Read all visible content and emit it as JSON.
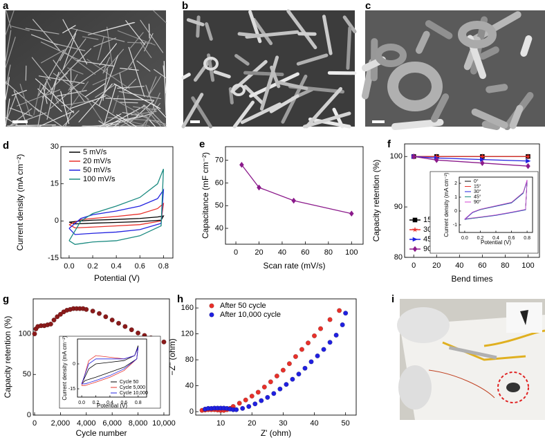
{
  "panel_labels": [
    "a",
    "b",
    "c",
    "d",
    "e",
    "f",
    "g",
    "h",
    "i"
  ],
  "chart_data": [
    {
      "type": "line",
      "xlabel": "Potential (V)",
      "ylabel": "Current density (mA cm⁻²)",
      "x": [
        0,
        0.1,
        0.2,
        0.4,
        0.6,
        0.75,
        0.8,
        0.78,
        0.6,
        0.4,
        0.2,
        0.05,
        0
      ],
      "series": [
        {
          "name": "5 mV/s",
          "color": "#000000",
          "values": [
            -0.5,
            0,
            0.3,
            0.6,
            1,
            1.6,
            2,
            0.3,
            -0.3,
            -0.6,
            -0.9,
            -1.2,
            -0.5
          ]
        },
        {
          "name": "20 mV/s",
          "color": "#e8302a",
          "values": [
            -1.5,
            0.5,
            1,
            1.8,
            2.8,
            5,
            7,
            0,
            -1.5,
            -2,
            -2.5,
            -2.8,
            -1.5
          ]
        },
        {
          "name": "50 mV/s",
          "color": "#2020e0",
          "values": [
            -3,
            1,
            2.5,
            4,
            6,
            9,
            12.5,
            -1,
            -3.5,
            -4.5,
            -5,
            -5.5,
            -3
          ]
        },
        {
          "name": "100 mV/s",
          "color": "#1a8a80",
          "values": [
            -8,
            0,
            3,
            6,
            9.5,
            15,
            21,
            -2,
            -6,
            -8,
            -8.5,
            -9.5,
            -8
          ]
        }
      ],
      "xlim": [
        -0.07,
        0.88
      ],
      "ylim": [
        -15,
        30
      ],
      "xticks": [
        {
          "value": 0,
          "label": "0.0"
        },
        0.2,
        0.4,
        0.6,
        0.8
      ],
      "yticks": [
        -15,
        0,
        15,
        30
      ],
      "legend": "upper left"
    },
    {
      "type": "line",
      "xlabel": "Scan rate (mV/s)",
      "ylabel": "Capacitance (mF cm⁻²)",
      "x": [
        5,
        20,
        50,
        100
      ],
      "values": [
        68,
        58,
        52.2,
        46.5
      ],
      "color": "#8b1a8b",
      "marker": "diamond",
      "xlim": [
        -9,
        110
      ],
      "ylim": [
        33,
        76
      ],
      "xticks": [
        0,
        20,
        40,
        60,
        80,
        100
      ],
      "yticks": [
        40,
        50,
        60,
        70
      ]
    },
    {
      "type": "line",
      "xlabel": "Bend times",
      "ylabel": "Capacity retention (%)",
      "x": [
        0,
        20,
        60,
        100
      ],
      "series": [
        {
          "name": "15°",
          "color": "#000000",
          "marker": "square",
          "values": [
            100,
            100,
            100,
            100
          ]
        },
        {
          "name": "30°",
          "color": "#e8302a",
          "marker": "star",
          "values": [
            100,
            100,
            100,
            100
          ]
        },
        {
          "name": "45°",
          "color": "#2020e0",
          "marker": "triangle",
          "values": [
            100,
            99.7,
            99.4,
            99.1
          ]
        },
        {
          "name": "90°",
          "color": "#8b1a8b",
          "marker": "diamond",
          "values": [
            100,
            99.3,
            98.7,
            98.1
          ]
        }
      ],
      "xlim": [
        -8,
        110
      ],
      "ylim": [
        80,
        102.5
      ],
      "xticks": [
        0,
        20,
        40,
        60,
        80,
        100
      ],
      "yticks": [
        80,
        90,
        100
      ],
      "legend": "center left"
    },
    {
      "type": "line",
      "xlabel": "Potential (V)",
      "ylabel": "Current density (mA cm⁻²)",
      "x": [
        0,
        0.1,
        0.2,
        0.4,
        0.6,
        0.75,
        0.8,
        0.78,
        0.6,
        0.4,
        0.2,
        0.05,
        0
      ],
      "series": [
        {
          "name": "0°",
          "color": "#000000",
          "values": [
            -0.6,
            -0.1,
            0.1,
            0.35,
            0.6,
            1.3,
            2.2,
            0.1,
            -0.1,
            -0.3,
            -0.45,
            -0.55,
            -0.6
          ]
        },
        {
          "name": "15°",
          "color": "#e8302a",
          "values": [
            -0.6,
            -0.1,
            0.12,
            0.37,
            0.62,
            1.32,
            2.2,
            0.1,
            -0.1,
            -0.3,
            -0.45,
            -0.55,
            -0.6
          ]
        },
        {
          "name": "30°",
          "color": "#2020e0",
          "values": [
            -0.62,
            -0.12,
            0.1,
            0.34,
            0.58,
            1.28,
            2.15,
            0.08,
            -0.12,
            -0.32,
            -0.47,
            -0.57,
            -0.62
          ]
        },
        {
          "name": "45°",
          "color": "#1a8a80",
          "values": [
            -0.6,
            -0.1,
            0.11,
            0.36,
            0.6,
            1.3,
            2.18,
            0.1,
            -0.1,
            -0.3,
            -0.46,
            -0.56,
            -0.6
          ]
        },
        {
          "name": "90°",
          "color": "#d040d0",
          "values": [
            -0.58,
            -0.08,
            0.13,
            0.38,
            0.63,
            1.34,
            2.25,
            0.12,
            -0.08,
            -0.28,
            -0.43,
            -0.53,
            -0.58
          ]
        }
      ],
      "xlim": [
        -0.07,
        0.87
      ],
      "ylim": [
        -1.55,
        2.45
      ],
      "xticks": [
        {
          "value": 0,
          "label": "0.0"
        },
        0.2,
        0.4,
        0.6,
        0.8
      ],
      "yticks": [
        -1,
        0,
        1,
        2
      ],
      "legend": "upper left"
    },
    {
      "type": "scatter",
      "xlabel": "Cycle number",
      "ylabel": "Capacity retention (%)",
      "color": "#8b1a1a",
      "marker": "circle",
      "x": [
        0,
        100,
        250,
        500,
        750,
        1000,
        1250,
        1500,
        1750,
        2000,
        2250,
        2500,
        2750,
        3000,
        3250,
        3500,
        3750,
        4000,
        4500,
        5000,
        5500,
        6000,
        6500,
        7000,
        7500,
        8000,
        8500,
        9000,
        9500,
        10000
      ],
      "values": [
        100,
        106,
        109,
        110,
        110,
        111,
        112,
        117,
        121,
        124,
        127,
        129,
        130,
        131,
        131,
        131,
        131,
        130,
        128,
        125,
        121,
        117,
        113,
        109,
        105,
        101,
        98,
        95,
        92,
        90
      ],
      "xlim": [
        -107,
        10430
      ],
      "ylim": [
        0,
        143
      ],
      "xticks": [
        0,
        {
          "value": 2000,
          "label": "2,000"
        },
        {
          "value": 4000,
          "label": "4,000"
        },
        {
          "value": 6000,
          "label": "6,000"
        },
        {
          "value": 8000,
          "label": "8,000"
        },
        {
          "value": 10000,
          "label": "10,000"
        }
      ],
      "yticks": [
        0,
        50,
        100
      ]
    },
    {
      "type": "line",
      "xlabel": "Potential (V)",
      "ylabel": "Current density (mA cm⁻²)",
      "x": [
        0,
        0.1,
        0.2,
        0.4,
        0.6,
        0.75,
        0.8,
        0.78,
        0.6,
        0.4,
        0.2,
        0.05,
        0
      ],
      "series": [
        {
          "name": "Cycle 50",
          "color": "#000000",
          "values": [
            -12,
            -3,
            0,
            1,
            2,
            5,
            11,
            3,
            -2,
            -5,
            -8,
            -10,
            -12
          ]
        },
        {
          "name": "Cycle 5,000",
          "color": "#e8302a",
          "values": [
            -13,
            2,
            5,
            4,
            3,
            5,
            10,
            3,
            -4,
            -8,
            -11,
            -13,
            -13
          ]
        },
        {
          "name": "Cycle 10,000",
          "color": "#2020e0",
          "values": [
            -12,
            0,
            3,
            3,
            3,
            5,
            10,
            3,
            -3,
            -7,
            -10,
            -12,
            -12
          ]
        }
      ],
      "xlim": [
        -0.06,
        0.92
      ],
      "ylim": [
        -20,
        15
      ],
      "xticks": [
        {
          "value": 0,
          "label": "0.0"
        },
        0.2,
        0.4,
        0.6,
        0.8
      ],
      "yticks": [
        -15,
        0
      ],
      "legend": "lower right"
    },
    {
      "type": "scatter",
      "xlabel": "Z' (ohm)",
      "ylabel": "−Z'' (ohm)",
      "series": [
        {
          "name": "After 50 cycle",
          "color": "#e8302a",
          "marker": "circle",
          "x": [
            4,
            5,
            6,
            7,
            8,
            9,
            10,
            11,
            12,
            13,
            14,
            16,
            18,
            20,
            22,
            24,
            26,
            28,
            30,
            32,
            34,
            36,
            38,
            40,
            42,
            45,
            48
          ],
          "values": [
            2,
            2.5,
            3,
            3,
            3,
            2.5,
            2,
            2,
            3,
            5,
            8,
            13,
            18,
            24,
            30,
            38,
            46,
            55,
            64,
            74,
            85,
            96,
            106,
            117,
            128,
            142,
            156
          ]
        },
        {
          "name": "After 10,000 cycle",
          "color": "#2020e0",
          "marker": "circle",
          "x": [
            5,
            6,
            7,
            8,
            9,
            10,
            11,
            12,
            13,
            14,
            15,
            17,
            19,
            21,
            23,
            25,
            27,
            29,
            31,
            33,
            35,
            37,
            39,
            41,
            43,
            45,
            47,
            49,
            50
          ],
          "values": [
            4,
            5,
            5,
            5.5,
            5.5,
            5.5,
            5.5,
            5,
            4,
            3,
            3,
            5,
            8,
            12,
            17,
            22,
            28,
            35,
            42,
            50,
            58,
            67,
            77,
            86,
            96,
            107,
            118,
            134,
            152
          ]
        }
      ],
      "xlim": [
        2,
        53.4
      ],
      "ylim": [
        -5.3,
        174
      ],
      "xticks": [
        10,
        20,
        30,
        40,
        50
      ],
      "yticks": [
        0,
        40,
        80,
        120,
        160
      ],
      "legend": "upper left"
    }
  ]
}
